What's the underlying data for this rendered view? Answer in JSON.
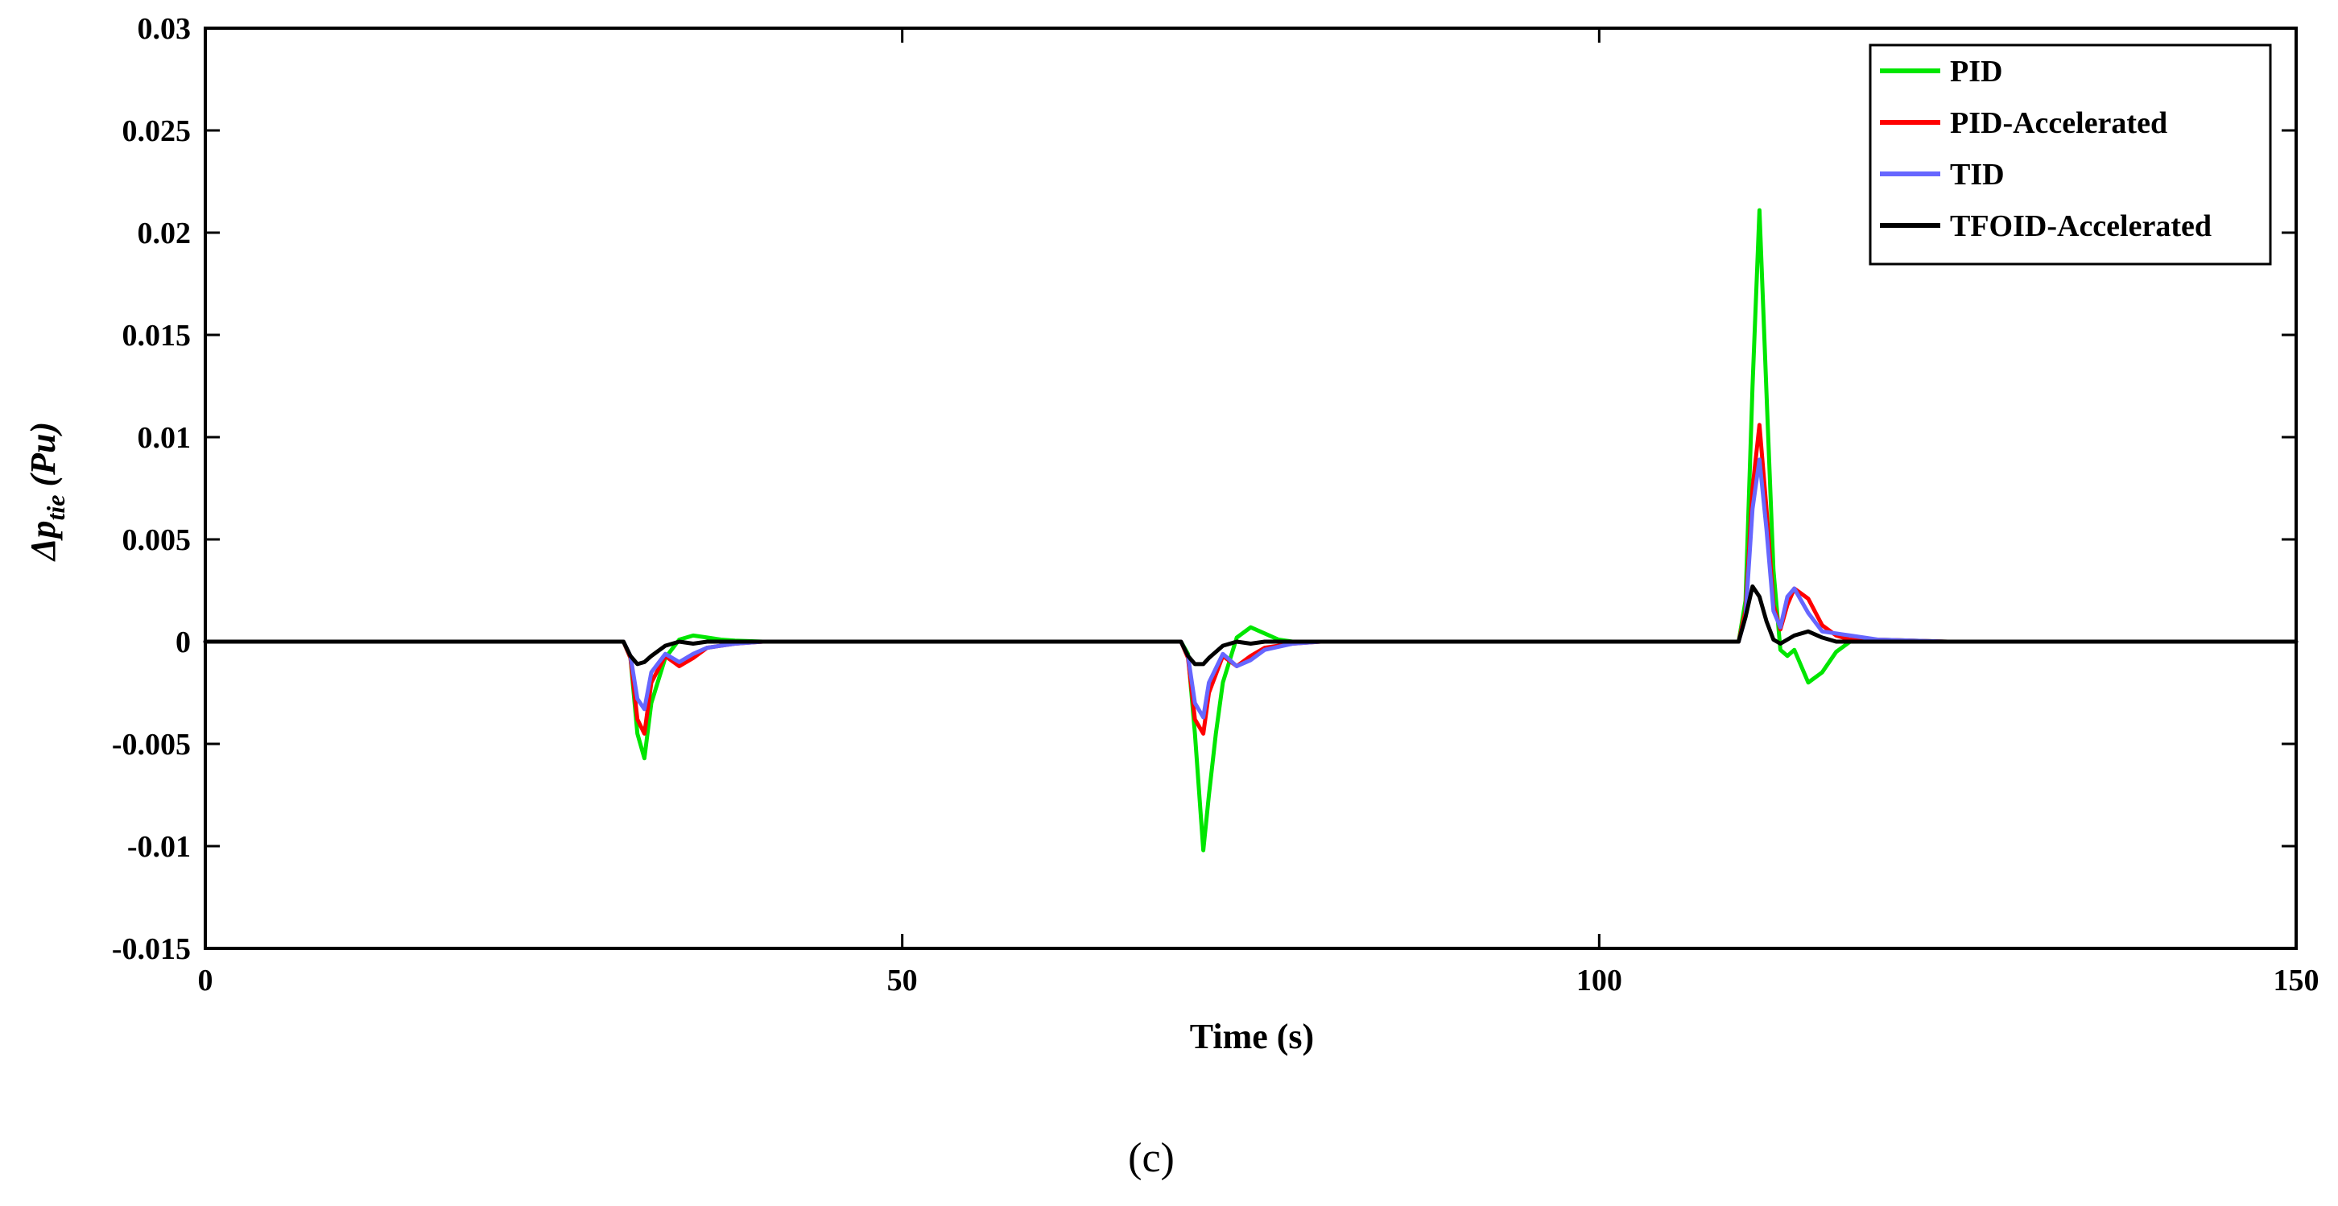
{
  "chart_data": {
    "type": "line",
    "xlabel": "Time (s)",
    "ylabel": {
      "base": "Δp",
      "subscript": "tie",
      "unit": "(Pu)"
    },
    "xlim": [
      0,
      150
    ],
    "ylim": [
      -0.015,
      0.03
    ],
    "x_ticks": [
      0,
      50,
      100,
      150
    ],
    "x_tick_labels": [
      "0",
      "50",
      "100",
      "150"
    ],
    "y_ticks": [
      -0.015,
      -0.01,
      -0.005,
      0,
      0.005,
      0.01,
      0.015,
      0.02,
      0.025,
      0.03
    ],
    "y_tick_labels": [
      "-0.015",
      "-0.01",
      "-0.005",
      "0",
      "0.005",
      "0.01",
      "0.015",
      "0.02",
      "0.025",
      "0.03"
    ],
    "grid": false,
    "legend_position": "top-right",
    "caption": "(c)",
    "series": [
      {
        "name": "PID",
        "color": "#00e600",
        "x": [
          0,
          30,
          30.5,
          31,
          31.5,
          32,
          33,
          34,
          35,
          36,
          37,
          38,
          40,
          70,
          70.5,
          71,
          71.6,
          72,
          72.5,
          73,
          74,
          75,
          76,
          77,
          78,
          80,
          85,
          110,
          110.5,
          111,
          111.5,
          112,
          112.5,
          113,
          113.5,
          114,
          115,
          116,
          117,
          118,
          120,
          125,
          150
        ],
        "y": [
          0,
          0,
          -0.0008,
          -0.0045,
          -0.0057,
          -0.003,
          -0.0008,
          0.0001,
          0.0003,
          0.0002,
          0.0001,
          5e-05,
          0,
          0,
          -0.0006,
          -0.0045,
          -0.0102,
          -0.0075,
          -0.0045,
          -0.002,
          0.0002,
          0.0007,
          0.0004,
          0.0001,
          0,
          0,
          0,
          0,
          0.002,
          0.0125,
          0.0211,
          0.0122,
          0.0035,
          -0.0004,
          -0.0007,
          -0.0004,
          -0.002,
          -0.0015,
          -0.0005,
          0,
          0.0001,
          0,
          0
        ]
      },
      {
        "name": "PID-Accelerated",
        "color": "#ff0000",
        "x": [
          0,
          30,
          30.5,
          31,
          31.5,
          32,
          33,
          34,
          35,
          36,
          38,
          40,
          70,
          70.5,
          71,
          71.6,
          72,
          73,
          74,
          75,
          76,
          78,
          80,
          110,
          110.5,
          111,
          111.5,
          112,
          112.5,
          113,
          113.5,
          114,
          115,
          116,
          117,
          118,
          120,
          125,
          150
        ],
        "y": [
          0,
          0,
          -0.0008,
          -0.0038,
          -0.0045,
          -0.002,
          -0.0007,
          -0.0012,
          -0.0008,
          -0.0003,
          -0.0001,
          0,
          0,
          -0.0008,
          -0.0038,
          -0.0045,
          -0.0025,
          -0.0007,
          -0.0012,
          -0.0007,
          -0.0003,
          -0.0001,
          0,
          0,
          0.0015,
          0.0075,
          0.0106,
          0.0065,
          0.0018,
          0.0006,
          0.0018,
          0.0026,
          0.0021,
          0.0008,
          0.0003,
          0.0001,
          0.0001,
          0,
          0
        ]
      },
      {
        "name": "TID",
        "color": "#6666ff",
        "x": [
          0,
          30,
          30.5,
          31,
          31.5,
          32,
          33,
          34,
          35,
          36,
          38,
          40,
          70,
          70.5,
          71,
          71.6,
          72,
          73,
          74,
          75,
          76,
          78,
          80,
          110,
          110.5,
          111,
          111.5,
          112,
          112.5,
          113,
          113.5,
          114,
          115,
          116,
          117,
          118,
          120,
          125,
          150
        ],
        "y": [
          0,
          0,
          -0.0007,
          -0.0028,
          -0.0033,
          -0.0015,
          -0.0006,
          -0.001,
          -0.0006,
          -0.0003,
          -0.0001,
          0,
          0,
          -0.0007,
          -0.003,
          -0.0037,
          -0.002,
          -0.0006,
          -0.0012,
          -0.0009,
          -0.0004,
          -0.0001,
          0,
          0,
          0.0012,
          0.0065,
          0.0089,
          0.0055,
          0.0015,
          0.0007,
          0.0022,
          0.0026,
          0.0014,
          0.0005,
          0.0004,
          0.0003,
          0.0001,
          0,
          0
        ]
      },
      {
        "name": "TFOID-Accelerated",
        "color": "#000000",
        "x": [
          0,
          30,
          30.5,
          31,
          31.5,
          32,
          33,
          34,
          35,
          36,
          38,
          40,
          70,
          70.5,
          71,
          71.6,
          72,
          73,
          74,
          75,
          76,
          78,
          80,
          110,
          110.5,
          111,
          111.5,
          112,
          112.5,
          113,
          114,
          115,
          116,
          117,
          118,
          120,
          125,
          150
        ],
        "y": [
          0,
          0,
          -0.0007,
          -0.0011,
          -0.001,
          -0.0007,
          -0.0002,
          0,
          -0.0001,
          0,
          0,
          0,
          0,
          -0.0007,
          -0.0011,
          -0.0011,
          -0.0008,
          -0.0002,
          0,
          -0.0001,
          0,
          0,
          0,
          0,
          0.0012,
          0.0027,
          0.0022,
          0.001,
          0.0001,
          -0.0001,
          0.0003,
          0.0005,
          0.0002,
          0,
          0,
          0,
          0,
          0
        ]
      }
    ]
  }
}
